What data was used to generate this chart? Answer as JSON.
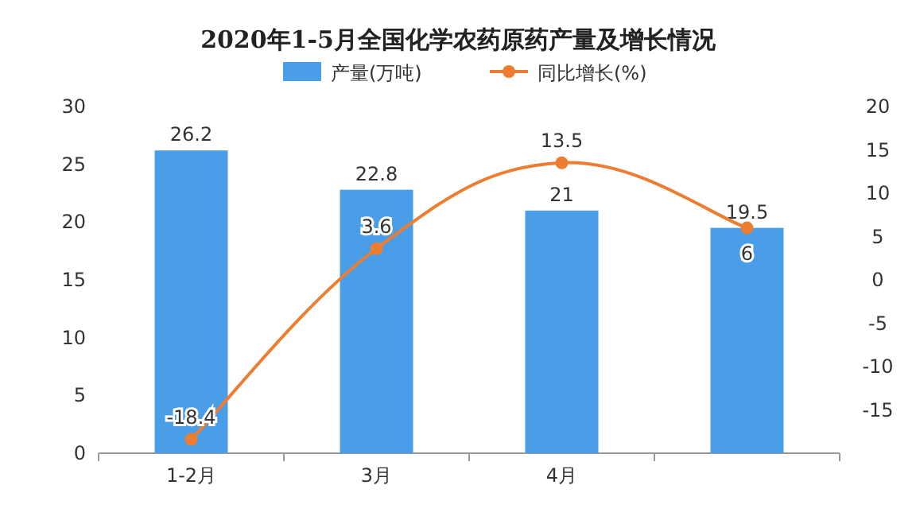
{
  "chart_data": {
    "type": "bar",
    "title": "2020年1-5月全国化学农药原药产量及增长情况",
    "categories": [
      "1-2月",
      "3月",
      "4月",
      null
    ],
    "series": [
      {
        "name": "产量(万吨)",
        "color": "#4a9ee8",
        "values": [
          26.2,
          22.8,
          21,
          19.5
        ]
      },
      {
        "name": "同比增长(%)",
        "type": "line",
        "axis": "y2",
        "color": "#ed7d31",
        "values": [
          -18.4,
          3.6,
          13.5,
          6
        ],
        "marker": "circle"
      }
    ],
    "ylim": [
      0,
      30
    ],
    "yticks": [
      0,
      5,
      10,
      15,
      20,
      25,
      30
    ],
    "y2lim": [
      -20,
      20
    ],
    "y2ticks": [
      -15,
      -10,
      -5,
      0,
      5,
      10,
      15,
      20
    ],
    "data_labels": true,
    "legend": "top",
    "grid": false
  }
}
